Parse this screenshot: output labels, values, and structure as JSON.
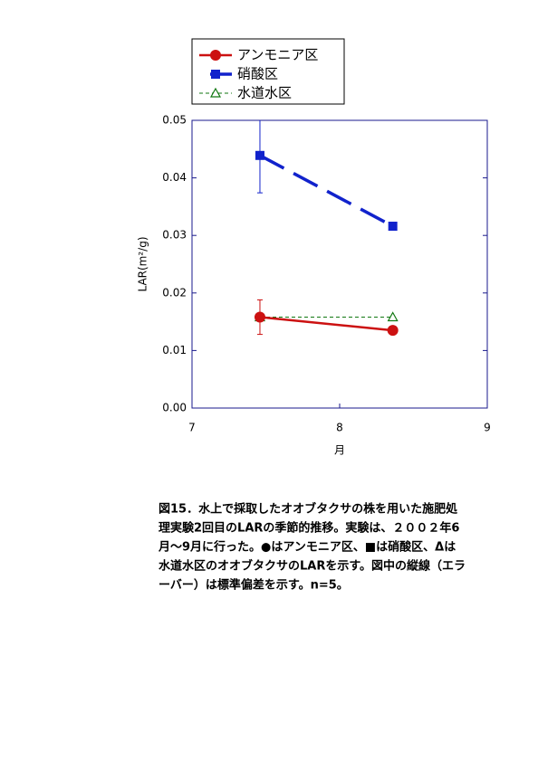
{
  "chart_data": {
    "type": "line",
    "xlabel": "月",
    "ylabel": "LAR(m²/g)",
    "x": [
      7.46,
      8.36
    ],
    "xlim": [
      7,
      9
    ],
    "xticks": [
      7,
      8,
      9
    ],
    "ylim": [
      0,
      0.05
    ],
    "yticks": [
      {
        "value": 0,
        "label": "0.00"
      },
      {
        "value": 0.01,
        "label": "0.01"
      },
      {
        "value": 0.02,
        "label": "0.02"
      },
      {
        "value": 0.03,
        "label": "0.03"
      },
      {
        "value": 0.04,
        "label": "0.04"
      },
      {
        "value": 0.05,
        "label": "0.05"
      }
    ],
    "series": [
      {
        "name": "アンモニア区",
        "color": "#cc1111",
        "marker": "circle",
        "values": [
          0.0158,
          0.0135
        ],
        "errors": [
          0.003,
          null
        ]
      },
      {
        "name": "硝酸区",
        "color": "#1122cc",
        "marker": "square",
        "values": [
          0.0439,
          0.0316
        ],
        "errors": [
          0.0065,
          null
        ]
      },
      {
        "name": "水道水区",
        "color": "#117711",
        "marker": "triangle",
        "values": [
          0.0158,
          0.0158
        ],
        "errors": [
          null,
          null
        ]
      }
    ],
    "caption": [
      "図15．水上で採取したオオブタクサの株を用いた施肥処",
      "理実験2回目のLARの季節的推移。実験は、２００２年6",
      "月～9月に行った。●はアンモニア区、■は硝酸区、Δは",
      "水道水区のオオブタクサのLARを示す。図中の縦線（エラ",
      "ーバー）は標準偏差を示す。n=5。"
    ]
  }
}
